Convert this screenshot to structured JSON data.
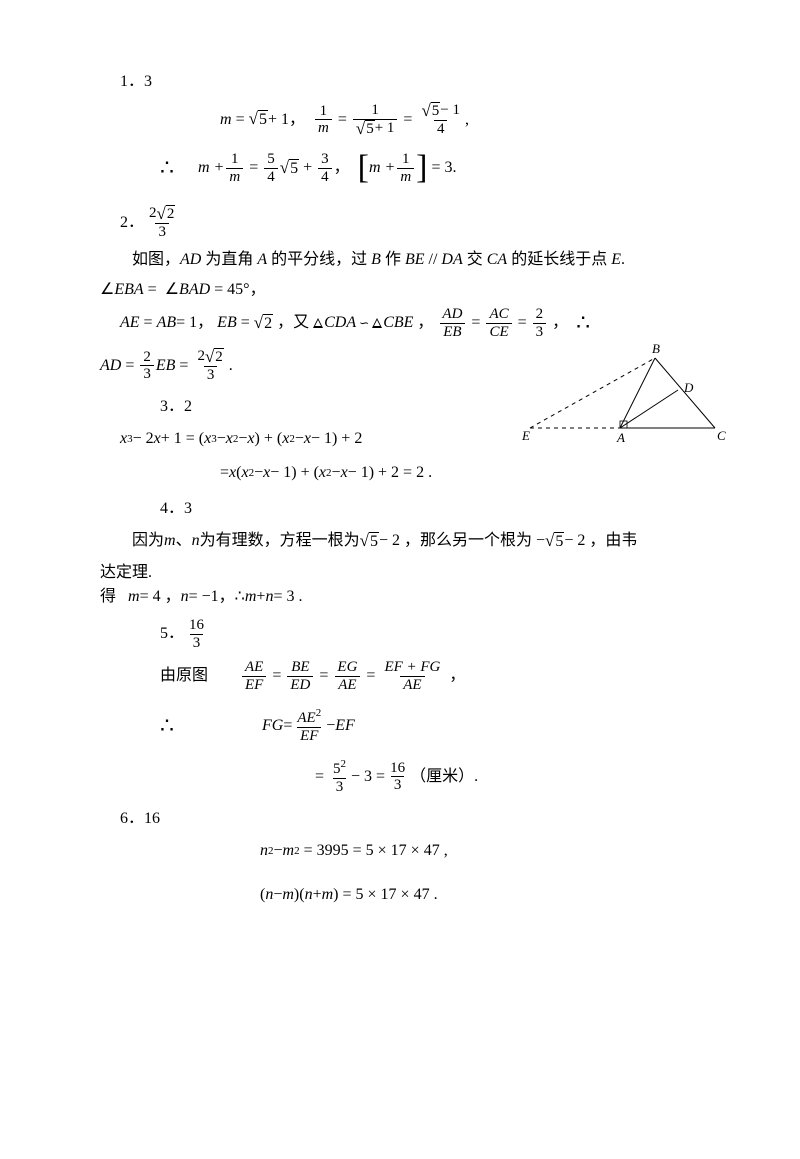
{
  "colors": {
    "text": "#000000",
    "background": "#ffffff"
  },
  "q1": {
    "num": "1",
    "ans": "3",
    "eq1_lhs": "m",
    "eq1_rhs_rad": "5",
    "eq1_rhs_add": "+ 1",
    "eq1b_top": "1",
    "eq1b_bot": "m",
    "eq1c_top": "1",
    "eq1c_rad": "5",
    "eq1c_add": "+ 1",
    "eq1d_rad": "5",
    "eq1d_sub": "− 1",
    "eq1d_den": "4",
    "therefore": "∴",
    "eq2_lhs": "m +",
    "eq2_f1t": "1",
    "eq2_f1b": "m",
    "eq2_f2t": "5",
    "eq2_f2b": "4",
    "eq2_rad": "5",
    "eq2_plus": "+",
    "eq2_f3t": "3",
    "eq2_f3b": "4",
    "eq2_br_m": "m +",
    "eq2_br_t": "1",
    "eq2_br_b": "m",
    "eq2_br_val": "= 3",
    "eq2_end": "."
  },
  "q2": {
    "num": "2",
    "ans_t": "2",
    "ans_rad": "2",
    "ans_b": "3",
    "p1a": "如图，",
    "p1b": "AD",
    "p1c": " 为直角 ",
    "p1d": "A",
    "p1e": " 的平分线，过 ",
    "p1f": "B",
    "p1g": " 作 ",
    "p1h": "BE",
    "p1i": " // ",
    "p1j": "DA",
    "p1k": " 交 ",
    "p1l": "CA",
    "p1m": " 的延长线于点 ",
    "p1n": "E",
    "p1o": ".",
    "p2a": "∠",
    "p2b": "EBA",
    "p2c": " = ",
    "p2d": "∠",
    "p2e": "BAD",
    "p2f": " = 45°，",
    "l3a": "AE",
    "l3b": "AB",
    "l3c": " = 1",
    "l3d": "EB",
    "l3rad": "2",
    "l3e": "又",
    "l3f": "CDA",
    "l3g": "CBE",
    "l3h_t1": "AD",
    "l3h_b1": "EB",
    "l3h_t2": "AC",
    "l3h_b2": "CE",
    "l3h_t3": "2",
    "l3h_b3": "3",
    "l4a": "AD",
    "l4f1t": "2",
    "l4f1b": "3",
    "l4b": "EB",
    "l4f2t": "2",
    "l4f2rad": "2",
    "l4f2b": "3",
    "comma": "，",
    "sep": "，",
    "therefore": "∴",
    "period": "."
  },
  "q3": {
    "num": "3",
    "ans": "2",
    "l1": "x",
    "l1e": "3",
    "l1a": " − 2",
    "l1b": "x",
    "l1c": " + 1 = (",
    "l1d": "x",
    "l1de": "3",
    "l1f": " − ",
    "l1g": "x",
    "l1ge": "2",
    "l1h": " − ",
    "l1i": "x",
    "l1j": ") + (",
    "l1k": "x",
    "l1ke": "2",
    "l1l": " − ",
    "l1m": "x",
    "l1n": " − 1) + 2",
    "l2a": "= ",
    "l2b": "x",
    "l2c": "(",
    "l2d": "x",
    "l2de": "2",
    "l2e": " − ",
    "l2f": "x",
    "l2g": " − 1) + (",
    "l2h": "x",
    "l2he": "2",
    "l2i": " − ",
    "l2j": "x",
    "l2k": " − 1) + 2 = 2",
    "l2l": "."
  },
  "q4": {
    "num": "4",
    "ans": "3",
    "p1a": "因为 ",
    "p1b": "m",
    "p1c": "、",
    "p1d": "n",
    "p1e": " 为有理数，方程一根为",
    "p1rad": "5",
    "p1f": " − 2 ，那么另一个根为 −",
    "p1rad2": "5",
    "p1g": " − 2 ，由韦",
    "p2": "达定理.",
    "p3a": "得",
    "p3b": "m",
    "p3c": " = 4 ，",
    "p3d": "n",
    "p3e": " = −1，",
    "p3f": "∴ ",
    "p3g": "m",
    "p3h": " + ",
    "p3i": "n",
    "p3j": " = 3 .",
    "sep": "  "
  },
  "q5": {
    "num": "5",
    "ans_t": "16",
    "ans_b": "3",
    "p1": "由原图",
    "f1t": "AE",
    "f1b": "EF",
    "f2t": "BE",
    "f2b": "ED",
    "f3t": "EG",
    "f3b": "AE",
    "f4t": "EF + FG",
    "f4b": "AE",
    "therefore": "∴",
    "fg": "FG",
    "eq": " = ",
    "f5t": "AE",
    "f5te": "2",
    "f5b": "EF",
    "minus": " − ",
    "ef": "EF",
    "f6t1": "5",
    "f6t1e": "2",
    "f6b1": "3",
    "minus2": " − 3 = ",
    "f6t2": "16",
    "f6b2": "3",
    "unit": "（厘米）",
    "period": ".",
    "comma": "，"
  },
  "q6": {
    "num": "6",
    "ans": "16",
    "l1a": "n",
    "l1ae": "2",
    "l1b": " − ",
    "l1c": "m",
    "l1ce": "2",
    "l1d": " = 3995 = 5 × 17 × 47 ,",
    "l2a": "(",
    "l2b": "n",
    "l2c": " − ",
    "l2d": "m",
    "l2e": ")(",
    "l2f": "n",
    "l2g": " + ",
    "l2h": "m",
    "l2i": ") = 5 × 17 × 47 ."
  },
  "figure": {
    "labels": {
      "B": "B",
      "D": "D",
      "E": "E",
      "A": "A",
      "C": "C"
    },
    "pts": {
      "E": [
        10,
        90
      ],
      "A": [
        100,
        90
      ],
      "C": [
        195,
        90
      ],
      "B": [
        135,
        20
      ],
      "D": [
        158,
        52
      ]
    },
    "stroke": "#000000",
    "dash": "4,4"
  }
}
